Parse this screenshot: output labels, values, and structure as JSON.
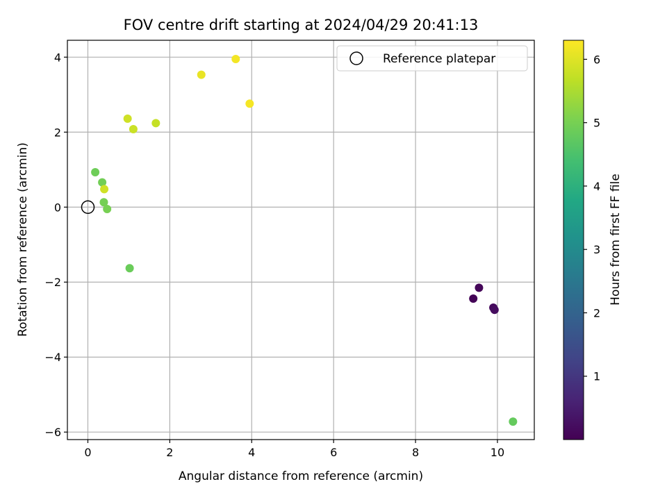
{
  "chart_data": {
    "type": "scatter",
    "title": "FOV centre drift starting at 2024/04/29 20:41:13",
    "xlabel": "Angular distance from reference (arcmin)",
    "ylabel": "Rotation from reference (arcmin)",
    "xlim": [
      -0.5,
      10.9
    ],
    "ylim": [
      -6.2,
      4.45
    ],
    "xticks": [
      0,
      2,
      4,
      6,
      8,
      10
    ],
    "yticks": [
      -6,
      -4,
      -2,
      0,
      2,
      4
    ],
    "xtick_labels": [
      "0",
      "2",
      "4",
      "6",
      "8",
      "10"
    ],
    "ytick_labels": [
      "−6",
      "−4",
      "−2",
      "0",
      "2",
      "4"
    ],
    "grid": true,
    "colormap": "viridis",
    "colorbar": {
      "label": "Hours from first FF file",
      "range": [
        0.0,
        6.3
      ],
      "ticks": [
        1,
        2,
        3,
        4,
        5,
        6
      ],
      "tick_labels": [
        "1",
        "2",
        "3",
        "4",
        "5",
        "6"
      ]
    },
    "legend": {
      "position": "top-right",
      "entries": [
        {
          "label": "Reference platepar",
          "marker": "open-circle"
        }
      ]
    },
    "reference_point": {
      "x": 0,
      "y": 0
    },
    "points": [
      {
        "x": 9.41,
        "y": -2.44,
        "hours": 0.05
      },
      {
        "x": 9.55,
        "y": -2.15,
        "hours": 0.1
      },
      {
        "x": 9.9,
        "y": -2.68,
        "hours": 0.15
      },
      {
        "x": 9.93,
        "y": -2.74,
        "hours": 0.2
      },
      {
        "x": 0.18,
        "y": 0.93,
        "hours": 4.9
      },
      {
        "x": 0.35,
        "y": 0.66,
        "hours": 4.95
      },
      {
        "x": 0.39,
        "y": 0.13,
        "hours": 4.98
      },
      {
        "x": 0.47,
        "y": -0.05,
        "hours": 5.0
      },
      {
        "x": 1.02,
        "y": -1.63,
        "hours": 4.85
      },
      {
        "x": 10.38,
        "y": -5.72,
        "hours": 4.8
      },
      {
        "x": 0.4,
        "y": 0.48,
        "hours": 5.85
      },
      {
        "x": 0.97,
        "y": 2.36,
        "hours": 5.85
      },
      {
        "x": 1.11,
        "y": 2.08,
        "hours": 5.8
      },
      {
        "x": 1.66,
        "y": 2.24,
        "hours": 5.75
      },
      {
        "x": 2.77,
        "y": 3.53,
        "hours": 6.1
      },
      {
        "x": 3.61,
        "y": 3.95,
        "hours": 6.2
      },
      {
        "x": 3.95,
        "y": 2.76,
        "hours": 6.22
      }
    ]
  }
}
